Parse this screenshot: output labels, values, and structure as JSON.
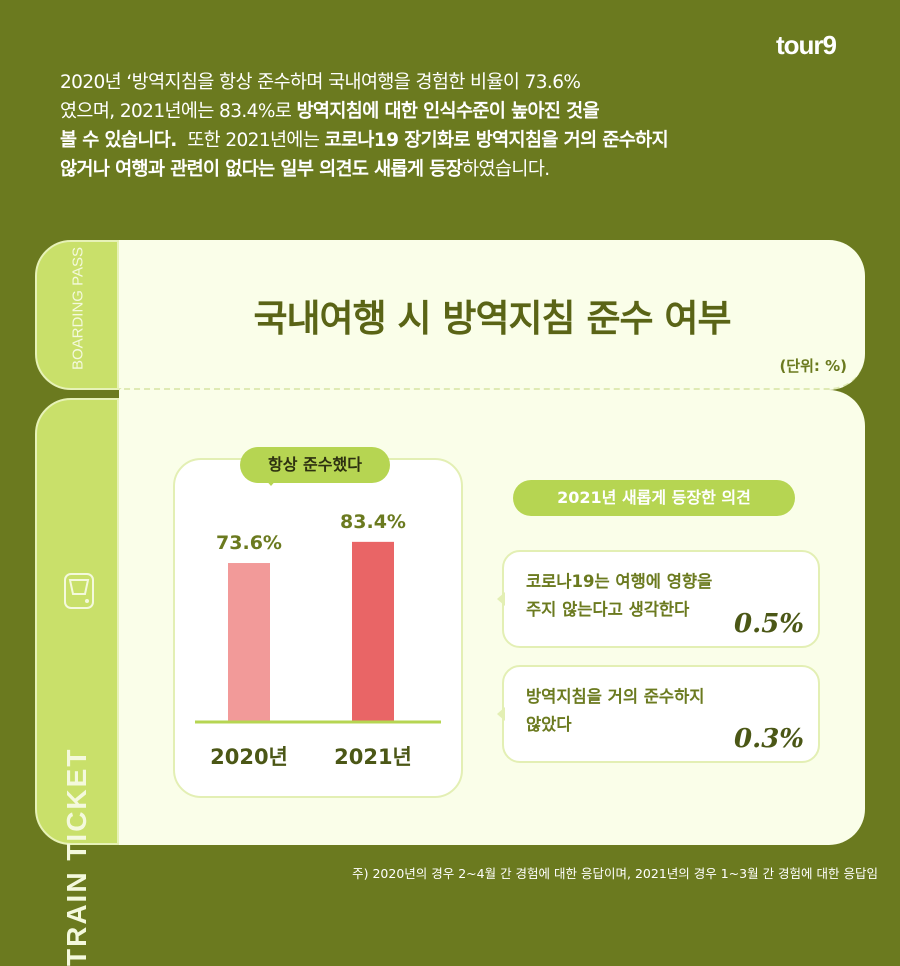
{
  "logo": "tour9",
  "intro": [
    [
      {
        "t": "2020년 ‘방역지침을 항상 준수하며 국내여행을 경험한 비율이 73.6%",
        "b": false
      }
    ],
    [
      {
        "t": "였으며, 2021년에는 83.4%로 ",
        "b": false
      },
      {
        "t": "방역지침에 대한 인식수준이 높아진 것을",
        "b": true
      }
    ],
    [
      {
        "t": "볼 수 있습니다.",
        "b": true
      },
      {
        "t": "  또한 2021년에는 ",
        "b": false
      },
      {
        "t": "코로나19 장기화로 방역지침을 거의 준수하지",
        "b": true
      }
    ],
    [
      {
        "t": "않거나 여행과 관련이 없다는 일부 의견도 새롭게 등장",
        "b": true
      },
      {
        "t": "하였습니다.",
        "b": false
      }
    ]
  ],
  "ticket": {
    "boarding_pass": "BOARDING PASS",
    "train_ticket": "TRAIN TICKET",
    "title": "국내여행 시 방역지침 준수 여부",
    "unit": "(단위: %)"
  },
  "chart_data": {
    "type": "bar",
    "title": "항상 준수했다",
    "categories": [
      "2020년",
      "2021년"
    ],
    "values": [
      73.6,
      83.4
    ],
    "value_labels": [
      "73.6%",
      "83.4%"
    ],
    "colors": [
      "#f29a99",
      "#e96566"
    ],
    "ylim": [
      0,
      100
    ],
    "grid": false
  },
  "opinions": {
    "title": "2021년 새롭게 등장한 의견",
    "items": [
      {
        "text1": "코로나19는 여행에 영향을",
        "text2": "주지 않는다고 생각한다",
        "value": "0.5%"
      },
      {
        "text1": "방역지침을 거의 준수하지",
        "text2": "않았다",
        "value": "0.3%"
      }
    ]
  },
  "footnote": "주) 2020년의 경우 2~4월 간 경험에 대한 응답이며, 2021년의 경우 1~3월 간 경험에 대한 응답임"
}
